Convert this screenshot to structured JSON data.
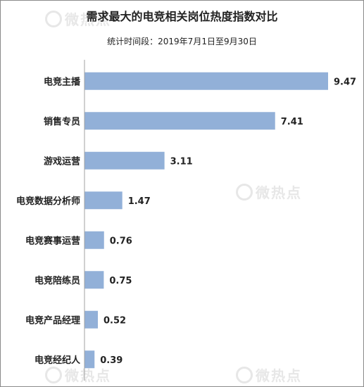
{
  "chart_data": {
    "type": "bar",
    "orientation": "horizontal",
    "title": "需求最大的电竞相关岗位热度指数对比",
    "subtitle": "统计时间段：2019年7月1日至9月30日",
    "categories": [
      "电竞主播",
      "销售专员",
      "游戏运营",
      "电竞数据分析师",
      "电竞赛事运营",
      "电竞陪练员",
      "电竞产品经理",
      "电竞经纪人"
    ],
    "values": [
      9.47,
      7.41,
      3.11,
      1.47,
      0.76,
      0.75,
      0.52,
      0.39
    ],
    "value_labels": [
      "9.47",
      "7.41",
      "3.11",
      "1.47",
      "0.76",
      "0.75",
      "0.52",
      "0.39"
    ],
    "xlim": [
      0,
      9.47
    ],
    "grid": false,
    "bar_color": "#92b0d8"
  },
  "watermark": {
    "text": "微热点"
  }
}
